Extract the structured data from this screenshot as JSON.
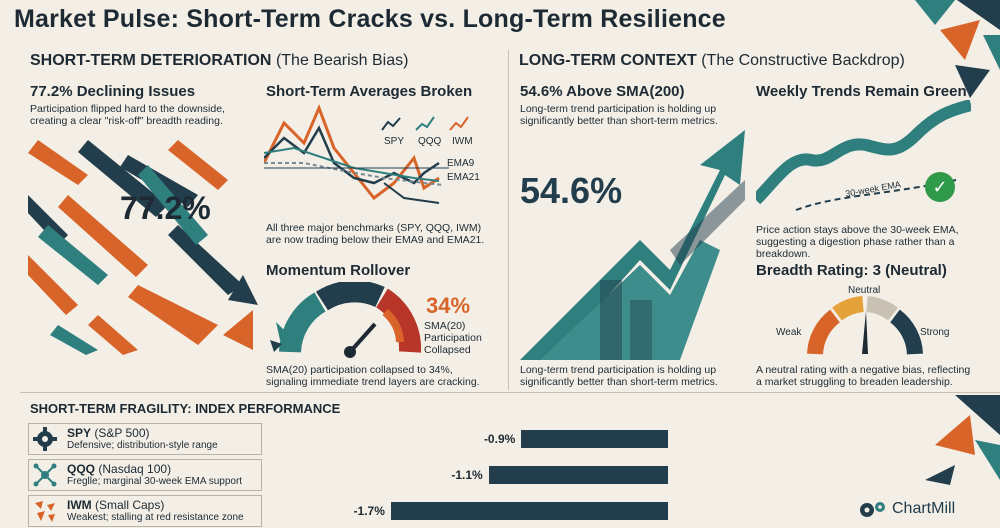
{
  "title": "Market Pulse: Short-Term Cracks vs. Long-Term Resilience",
  "short_term": {
    "heading_bold": "SHORT-TERM DETERIORATION",
    "heading_rest": "(The Bearish Bias)",
    "declining": {
      "title": "77.2% Declining Issues",
      "desc": "Participation flipped hard to the downside, creating a clear \"risk-off\" breadth reading.",
      "big": "77.2%"
    },
    "averages": {
      "title": "Short-Term Averages Broken",
      "tickers": [
        "SPY",
        "QQQ",
        "IWM"
      ],
      "ema9": "EMA9",
      "ema21": "EMA21",
      "desc": "All three major benchmarks (SPY, QQQ, IWM) are now trading below their EMA9 and EMA21."
    },
    "momentum": {
      "title": "Momentum Rollover",
      "big": "34%",
      "label": "SMA(20) Participation Collapsed",
      "value": 34,
      "desc": "SMA(20) participation collapsed to 34%, signaling immediate trend layers are cracking."
    }
  },
  "long_term": {
    "heading_bold": "LONG-TERM CONTEXT",
    "heading_rest": "(The Constructive Backdrop)",
    "sma200": {
      "title": "54.6% Above SMA(200)",
      "desc": "Long-term trend participation is holding up significantly better than short-term metrics.",
      "big": "54.6%",
      "desc2": "Long-term trend participation is holding up significantly better than short-term metrics."
    },
    "weekly": {
      "title": "Weekly Trends Remain Green",
      "ema_label": "30-week EMA",
      "desc": "Price action stays above the 30-week EMA, suggesting a digestion phase rather than a breakdown."
    },
    "rating": {
      "title": "Breadth Rating: 3 (Neutral)",
      "neutral": "Neutral",
      "weak": "Weak",
      "strong": "Strong",
      "value": 3,
      "desc": "A neutral rating with a negative bias, reflecting a market struggling to breaden leadership."
    }
  },
  "fragility": {
    "heading": "SHORT-TERM FRAGILITY: INDEX PERFORMANCE",
    "rows": [
      {
        "ticker": "SPY",
        "name": "(S&P 500)",
        "desc": "Defensive; distribution-style range",
        "value": -0.9,
        "label": "-0.9%",
        "icon": "gear-icon"
      },
      {
        "ticker": "QQQ",
        "name": "(Nasdaq 100)",
        "desc": "Freglle; marginal 30-week EMA support",
        "value": -1.1,
        "label": "-1.1%",
        "icon": "network-icon"
      },
      {
        "ticker": "IWM",
        "name": "(Small Caps)",
        "desc": "Weakest; stalling at red resistance zone",
        "value": -1.7,
        "label": "-1.7%",
        "icon": "scatter-icon"
      }
    ]
  },
  "brand": "ChartMill",
  "colors": {
    "navy": "#223d4c",
    "teal": "#2f7f7e",
    "orange": "#d9642a",
    "red": "#b8352a",
    "green": "#2f9a4a"
  }
}
